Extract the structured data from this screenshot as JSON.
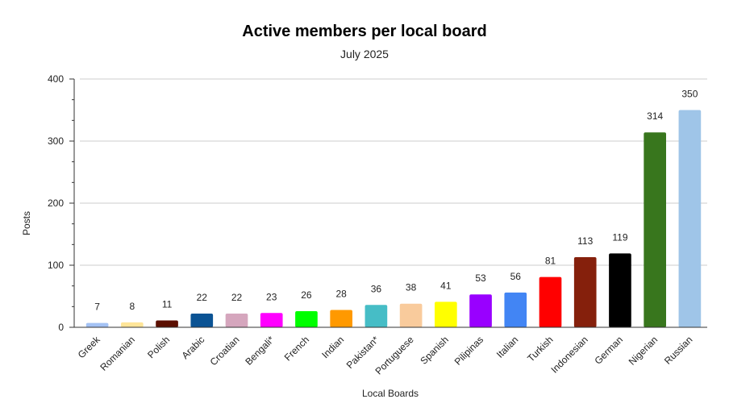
{
  "chart_data": {
    "type": "bar",
    "title": "Active members per local board",
    "subtitle": "July 2025",
    "xlabel": "Local Boards",
    "ylabel": "Posts",
    "ylim": [
      0,
      400
    ],
    "yticks": [
      0,
      100,
      200,
      300,
      400
    ],
    "grid": true,
    "legend": "none",
    "categories": [
      "Greek",
      "Romanian",
      "Polish",
      "Arabic",
      "Croatian",
      "Bengali*",
      "French",
      "Indian",
      "Pakistan*",
      "Portuguese",
      "Spanish",
      "Pilipinas",
      "Italian",
      "Turkish",
      "Indonesian",
      "German",
      "Nigerian",
      "Russian"
    ],
    "values": [
      7,
      8,
      11,
      22,
      22,
      23,
      26,
      28,
      36,
      38,
      41,
      53,
      56,
      81,
      113,
      119,
      314,
      350
    ],
    "colors": [
      "#a4c2f4",
      "#ffe599",
      "#5b0f00",
      "#0b5394",
      "#d5a6bd",
      "#ff00ff",
      "#00ff00",
      "#ff9900",
      "#46bdc6",
      "#f9cb9c",
      "#ffff00",
      "#9900ff",
      "#4285f4",
      "#ff0000",
      "#85200c",
      "#000000",
      "#38761d",
      "#9fc5e8"
    ]
  }
}
